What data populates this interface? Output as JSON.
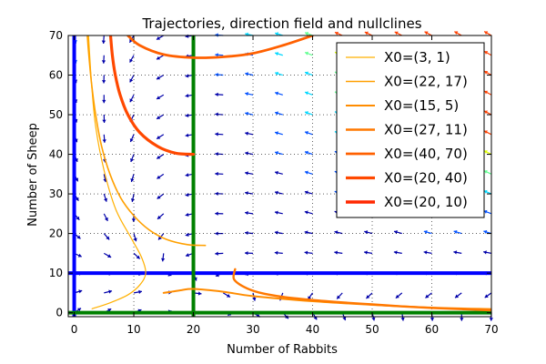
{
  "chart_data": {
    "type": "line",
    "title": "Trajectories, direction field and nullclines",
    "xlabel": "Number of Rabbits",
    "ylabel": "Number of Sheep",
    "xlim": [
      -1,
      70
    ],
    "ylim": [
      -1,
      70
    ],
    "xticks": [
      0,
      10,
      20,
      30,
      40,
      50,
      60,
      70
    ],
    "yticks": [
      0,
      10,
      20,
      30,
      40,
      50,
      60,
      70
    ],
    "grid": true,
    "legend_position": "top-right",
    "nullclines": [
      {
        "orientation": "vertical",
        "x": 0,
        "color": "#0000ff"
      },
      {
        "orientation": "horizontal",
        "y": 10,
        "color": "#0000ff"
      },
      {
        "orientation": "vertical",
        "x": 20,
        "color": "#008000"
      },
      {
        "orientation": "horizontal",
        "y": 0,
        "color": "#008000"
      }
    ],
    "series": [
      {
        "name": "X0=(3, 1)",
        "color": "#ffb000",
        "width": 1.2,
        "points": [
          [
            3,
            1
          ],
          [
            6,
            2.5
          ],
          [
            9,
            4.5
          ],
          [
            11,
            7
          ],
          [
            12,
            10
          ],
          [
            11.3,
            14
          ],
          [
            9.5,
            19
          ],
          [
            7,
            26
          ],
          [
            5,
            36
          ],
          [
            3.6,
            47
          ],
          [
            2.9,
            58
          ],
          [
            2.4,
            70
          ]
        ]
      },
      {
        "name": "X0=(22, 17)",
        "color": "#ffa000",
        "width": 1.6,
        "points": [
          [
            22,
            17
          ],
          [
            19,
            17.2
          ],
          [
            15.5,
            18.5
          ],
          [
            12.5,
            21
          ],
          [
            10,
            24.5
          ],
          [
            7.8,
            29
          ],
          [
            6,
            35
          ],
          [
            4.6,
            42
          ],
          [
            3.6,
            50
          ],
          [
            2.9,
            58
          ],
          [
            2.4,
            66
          ],
          [
            2.2,
            70
          ]
        ]
      },
      {
        "name": "X0=(15, 5)",
        "color": "#ff8c00",
        "width": 2.0,
        "points": [
          [
            15,
            5
          ],
          [
            18,
            5.7
          ],
          [
            20,
            6
          ],
          [
            25,
            5.3
          ],
          [
            30,
            4.2
          ],
          [
            40,
            2.9
          ],
          [
            50,
            2
          ],
          [
            60,
            1.3
          ],
          [
            70,
            0.9
          ]
        ]
      },
      {
        "name": "X0=(27, 11)",
        "color": "#ff7800",
        "width": 2.4,
        "points": [
          [
            27,
            11
          ],
          [
            26.8,
            8.5
          ],
          [
            28.5,
            6.5
          ],
          [
            31,
            5.1
          ],
          [
            35,
            4
          ],
          [
            40,
            3.2
          ],
          [
            45,
            2.6
          ],
          [
            50,
            2.1
          ],
          [
            55,
            1.6
          ],
          [
            60,
            1.2
          ],
          [
            65,
            0.9
          ],
          [
            70,
            0.6
          ]
        ]
      },
      {
        "name": "X0=(40, 70)",
        "color": "#ff6000",
        "width": 2.8,
        "points": [
          [
            40,
            70
          ],
          [
            35,
            67.5
          ],
          [
            30,
            65.5
          ],
          [
            25,
            64.6
          ],
          [
            20,
            64.4
          ],
          [
            15,
            65.2
          ],
          [
            11,
            67.5
          ],
          [
            9,
            70
          ]
        ]
      },
      {
        "name": "X0=(20, 40)",
        "color": "#ff4800",
        "width": 3.2,
        "points": [
          [
            20,
            40
          ],
          [
            17,
            40.3
          ],
          [
            14,
            42
          ],
          [
            11,
            45.5
          ],
          [
            9,
            50
          ],
          [
            7.7,
            55
          ],
          [
            6.9,
            60
          ],
          [
            6.4,
            65
          ],
          [
            6.1,
            70
          ]
        ]
      },
      {
        "name": "X0=(20, 10)",
        "color": "#ff2800",
        "width": 3.6,
        "points": []
      }
    ]
  }
}
